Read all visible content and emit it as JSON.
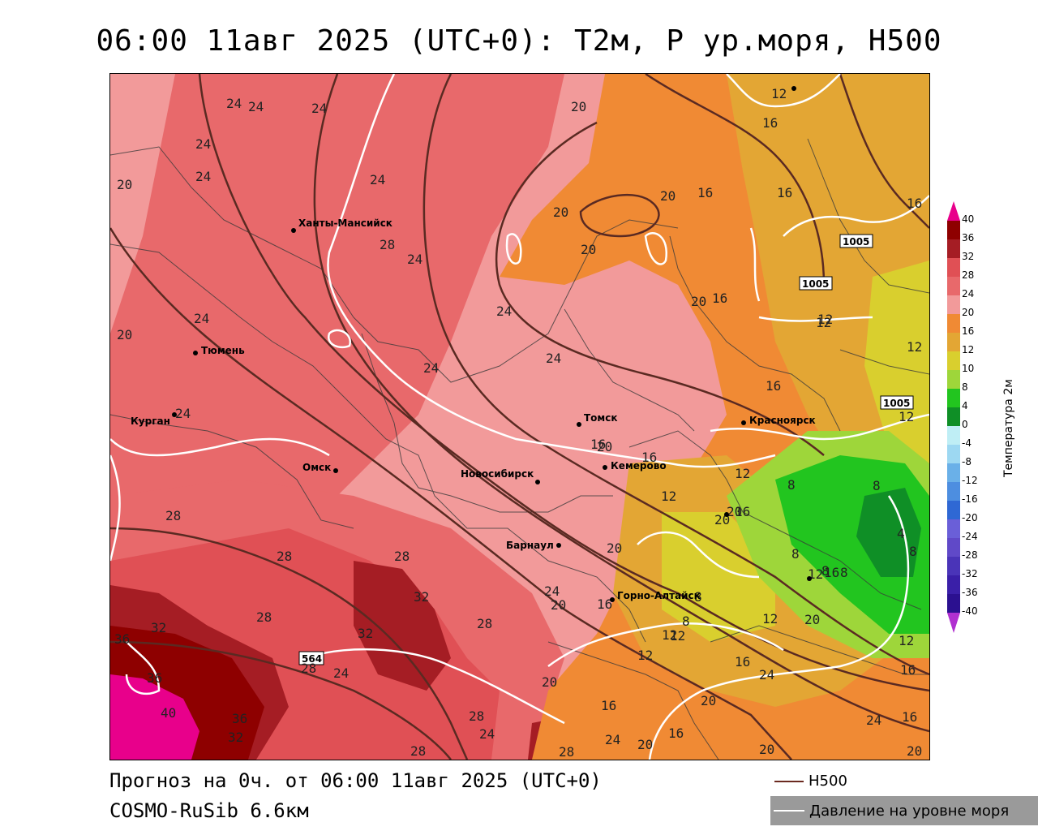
{
  "title": "06:00 11авг 2025 (UTC+0): Т2м, Р ур.моря, H500",
  "footer": {
    "forecast": "Прогноз на 0ч. от 06:00 11авг 2025 (UTC+0)",
    "model": "COSMO-RuSib 6.6км"
  },
  "legend": {
    "h500": "H500",
    "pressure": "Давление на уровне моря"
  },
  "colorbar": {
    "title": "Температура 2м",
    "labels": [
      "40",
      "36",
      "32",
      "28",
      "24",
      "20",
      "16",
      "12",
      "10",
      "8",
      "4",
      "0",
      "-4",
      "-8",
      "-12",
      "-16",
      "-20",
      "-24",
      "-28",
      "-32",
      "-36",
      "-40"
    ]
  },
  "cities": [
    {
      "name": "Ханты-Мансийск"
    },
    {
      "name": "Тюмень"
    },
    {
      "name": "Курган"
    },
    {
      "name": "Омск"
    },
    {
      "name": "Новосибирск"
    },
    {
      "name": "Томск"
    },
    {
      "name": "Кемерово"
    },
    {
      "name": "Красноярск"
    },
    {
      "name": "Барнаул"
    },
    {
      "name": "Горно-Алтайск"
    }
  ],
  "isobar_labels": [
    "1005",
    "1005",
    "1005"
  ],
  "h500_label": "564"
}
